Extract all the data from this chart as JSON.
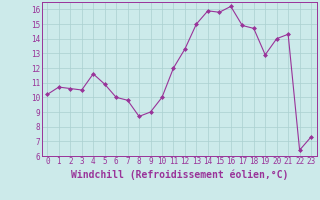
{
  "x": [
    0,
    1,
    2,
    3,
    4,
    5,
    6,
    7,
    8,
    9,
    10,
    11,
    12,
    13,
    14,
    15,
    16,
    17,
    18,
    19,
    20,
    21,
    22,
    23
  ],
  "y": [
    10.2,
    10.7,
    10.6,
    10.5,
    11.6,
    10.9,
    10.0,
    9.8,
    8.7,
    9.0,
    10.0,
    12.0,
    13.3,
    15.0,
    15.9,
    15.8,
    16.2,
    14.9,
    14.7,
    12.9,
    14.0,
    14.3,
    6.4,
    7.3
  ],
  "line_color": "#993399",
  "marker_color": "#993399",
  "bg_color": "#cceaea",
  "grid_color": "#aad0d0",
  "xlabel": "Windchill (Refroidissement éolien,°C)",
  "ylim": [
    6,
    16.5
  ],
  "xlim": [
    -0.5,
    23.5
  ],
  "yticks": [
    6,
    7,
    8,
    9,
    10,
    11,
    12,
    13,
    14,
    15,
    16
  ],
  "xticks": [
    0,
    1,
    2,
    3,
    4,
    5,
    6,
    7,
    8,
    9,
    10,
    11,
    12,
    13,
    14,
    15,
    16,
    17,
    18,
    19,
    20,
    21,
    22,
    23
  ],
  "tick_label_fontsize": 5.5,
  "xlabel_fontsize": 7.0
}
